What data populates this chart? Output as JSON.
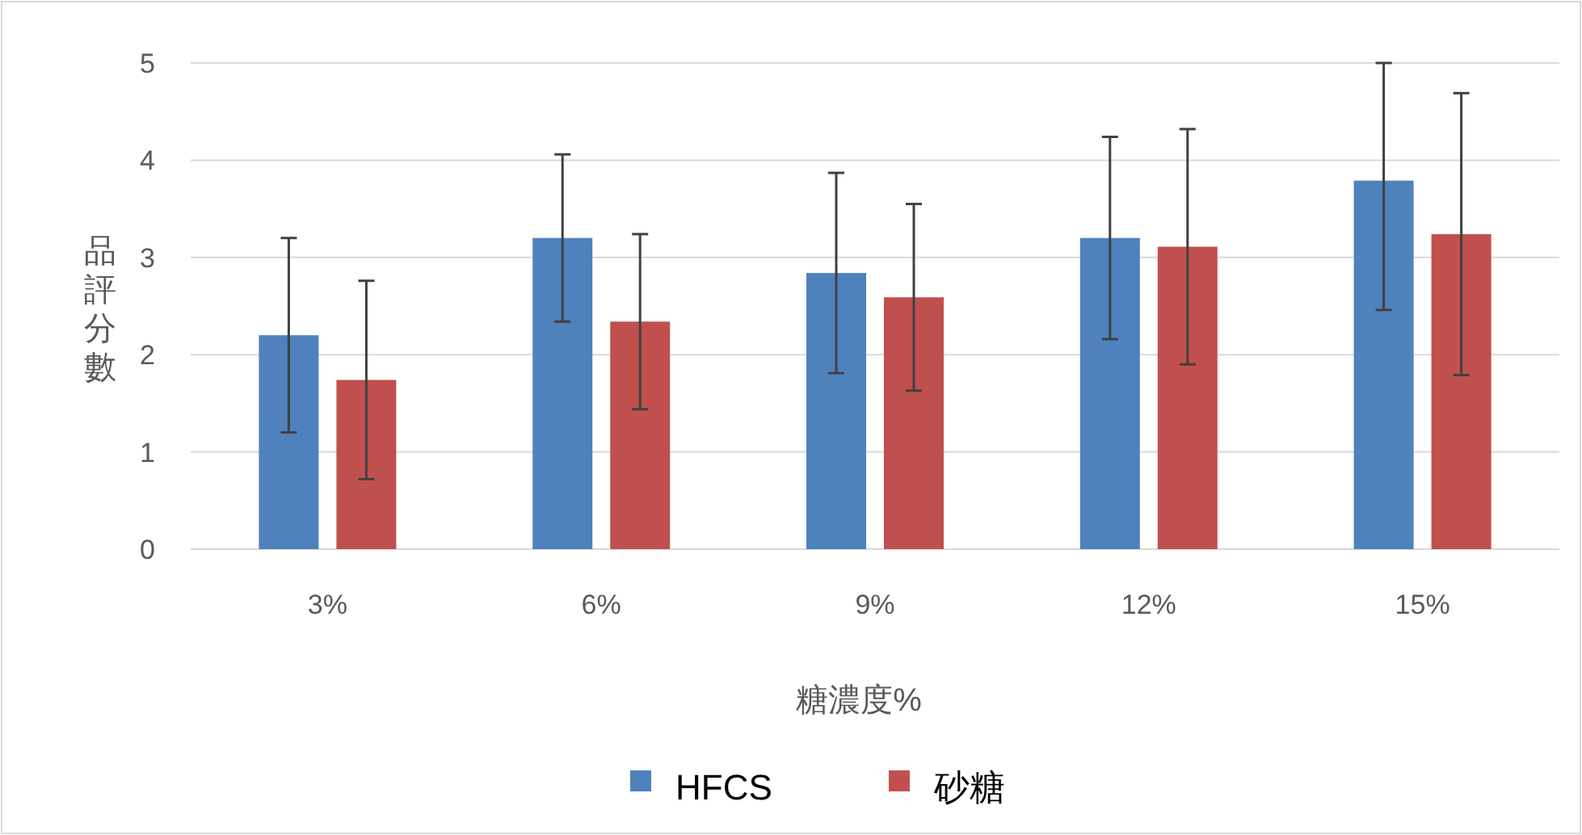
{
  "chart_data": {
    "type": "bar",
    "ylabel": "品評分數",
    "xlabel": "糖濃度%",
    "categories": [
      "3%",
      "6%",
      "9%",
      "12%",
      "15%"
    ],
    "series": [
      {
        "name": "HFCS",
        "color": "#4f81bd",
        "values": [
          2.2,
          3.2,
          2.84,
          3.2,
          3.79
        ],
        "errors": [
          1.0,
          0.86,
          1.03,
          1.04,
          [
            2.46,
            5.0
          ]
        ]
      },
      {
        "name": "砂糖",
        "color": "#c0504d",
        "values": [
          1.74,
          2.34,
          2.59,
          3.11,
          3.24
        ],
        "errors": [
          1.02,
          0.9,
          0.96,
          1.21,
          1.45
        ]
      }
    ],
    "ylim": [
      0,
      5
    ],
    "yticks": [
      0,
      1,
      2,
      3,
      4,
      5
    ],
    "grid": "y",
    "legend": "bottom"
  }
}
